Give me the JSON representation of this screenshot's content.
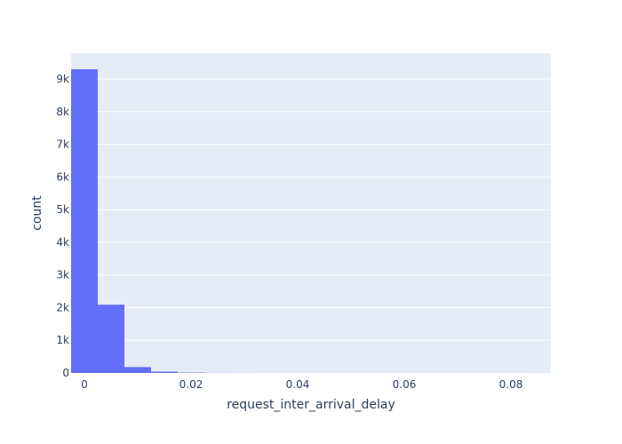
{
  "chart_data": {
    "type": "bar",
    "subtype": "histogram",
    "xlabel": "request_inter_arrival_delay",
    "ylabel": "count",
    "bin_width": 0.005,
    "bins": [
      {
        "x0": -0.0025,
        "x1": 0.0025,
        "count": 9300
      },
      {
        "x0": 0.0025,
        "x1": 0.0075,
        "count": 2090
      },
      {
        "x0": 0.0075,
        "x1": 0.0125,
        "count": 180
      },
      {
        "x0": 0.0125,
        "x1": 0.0175,
        "count": 40
      },
      {
        "x0": 0.0175,
        "x1": 0.0225,
        "count": 12
      },
      {
        "x0": 0.0225,
        "x1": 0.0275,
        "count": 3
      },
      {
        "x0": 0.0275,
        "x1": 0.0325,
        "count": 1
      },
      {
        "x0": 0.0325,
        "x1": 0.0375,
        "count": 0
      },
      {
        "x0": 0.0375,
        "x1": 0.0425,
        "count": 0
      },
      {
        "x0": 0.0425,
        "x1": 0.0475,
        "count": 0
      },
      {
        "x0": 0.0475,
        "x1": 0.0525,
        "count": 0
      },
      {
        "x0": 0.0525,
        "x1": 0.0575,
        "count": 0
      },
      {
        "x0": 0.0575,
        "x1": 0.0625,
        "count": 0
      },
      {
        "x0": 0.0625,
        "x1": 0.0675,
        "count": 0
      },
      {
        "x0": 0.0675,
        "x1": 0.0725,
        "count": 0
      },
      {
        "x0": 0.0725,
        "x1": 0.0775,
        "count": 0
      },
      {
        "x0": 0.0775,
        "x1": 0.0825,
        "count": 0
      },
      {
        "x0": 0.0825,
        "x1": 0.0875,
        "count": 1
      }
    ],
    "xlim": [
      -0.0025,
      0.0875
    ],
    "ylim": [
      0,
      9789
    ],
    "x_ticks": [
      {
        "value": 0,
        "label": "0"
      },
      {
        "value": 0.02,
        "label": "0.02"
      },
      {
        "value": 0.04,
        "label": "0.04"
      },
      {
        "value": 0.06,
        "label": "0.06"
      },
      {
        "value": 0.08,
        "label": "0.08"
      }
    ],
    "y_ticks": [
      {
        "value": 0,
        "label": "0"
      },
      {
        "value": 1000,
        "label": "1k"
      },
      {
        "value": 2000,
        "label": "2k"
      },
      {
        "value": 3000,
        "label": "3k"
      },
      {
        "value": 4000,
        "label": "4k"
      },
      {
        "value": 5000,
        "label": "5k"
      },
      {
        "value": 6000,
        "label": "6k"
      },
      {
        "value": 7000,
        "label": "7k"
      },
      {
        "value": 8000,
        "label": "8k"
      },
      {
        "value": 9000,
        "label": "9k"
      }
    ],
    "grid": true,
    "colors": {
      "bar": "#636efa",
      "plot_background": "#e5ecf6",
      "grid": "#ffffff",
      "text": "#2a3f5f"
    }
  }
}
